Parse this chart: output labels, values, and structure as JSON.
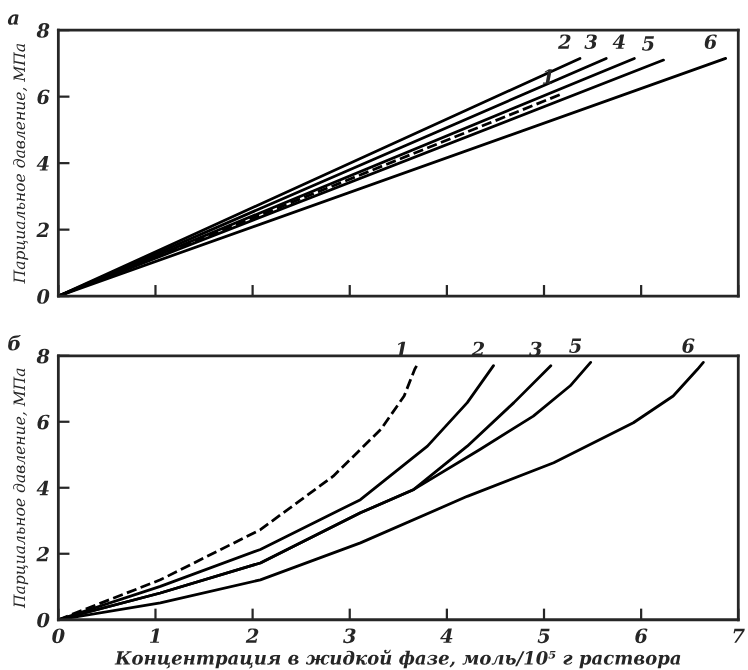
{
  "chart_data": [
    {
      "type": "line",
      "title": "а",
      "ylabel": "Парциальное давление, МПа",
      "xlim": [
        0,
        7
      ],
      "xticks": [
        0,
        1,
        2,
        3,
        4,
        5,
        6,
        7
      ],
      "ylim": [
        0,
        8
      ],
      "yticks": [
        0,
        2,
        4,
        6,
        8
      ],
      "tick_labels": "y",
      "series": [
        {
          "name": "1",
          "color": "#000000",
          "line_style": "dashed",
          "x": [
            0,
            5.2
          ],
          "values": [
            0,
            6.1
          ]
        },
        {
          "name": "2",
          "color": "#000000",
          "line_style": "solid",
          "x": [
            0,
            5.37
          ],
          "values": [
            0,
            7.15
          ]
        },
        {
          "name": "3",
          "color": "#000000",
          "line_style": "solid",
          "x": [
            0,
            5.64
          ],
          "values": [
            0,
            7.15
          ]
        },
        {
          "name": "4",
          "color": "#000000",
          "line_style": "solid",
          "x": [
            0,
            5.93
          ],
          "values": [
            0,
            7.15
          ]
        },
        {
          "name": "5",
          "color": "#000000",
          "line_style": "solid",
          "x": [
            0,
            6.23
          ],
          "values": [
            0,
            7.1
          ]
        },
        {
          "name": "6",
          "color": "#000000",
          "line_style": "solid",
          "x": [
            0,
            6.87
          ],
          "values": [
            0,
            7.15
          ]
        }
      ]
    },
    {
      "type": "line",
      "title": "б",
      "xlabel": "Концентрация в жидкой фазе, моль/10⁵ г раствора",
      "ylabel": "Парциальное давление, МПа",
      "xlim": [
        0,
        7
      ],
      "xticks": [
        0,
        1,
        2,
        3,
        4,
        5,
        6,
        7
      ],
      "ylim": [
        0,
        8
      ],
      "yticks": [
        0,
        2,
        4,
        6,
        8
      ],
      "series": [
        {
          "name": "1",
          "color": "#000000",
          "line_style": "dashed",
          "x": [
            0,
            1.05,
            2.08,
            2.83,
            3.32,
            3.56,
            3.67,
            3.69
          ],
          "values": [
            0,
            1.21,
            2.73,
            4.35,
            5.77,
            6.78,
            7.6,
            7.7
          ]
        },
        {
          "name": "2",
          "color": "#000000",
          "line_style": "solid",
          "x": [
            0,
            1.05,
            2.08,
            3.11,
            3.8,
            4.21,
            4.48
          ],
          "values": [
            0,
            1.01,
            2.13,
            3.64,
            5.26,
            6.58,
            7.7
          ]
        },
        {
          "name": "3",
          "color": "#000000",
          "line_style": "solid",
          "x": [
            0,
            1.05,
            2.08,
            3.11,
            3.66,
            4.21,
            4.69,
            5.07
          ],
          "values": [
            0,
            0.81,
            1.72,
            3.24,
            3.95,
            5.26,
            6.58,
            7.7
          ]
        },
        {
          "name": "5",
          "color": "#000000",
          "line_style": "solid",
          "x": [
            0,
            1.05,
            2.08,
            3.11,
            3.66,
            4.34,
            4.89,
            5.27,
            5.48
          ],
          "values": [
            0,
            0.81,
            1.72,
            3.24,
            3.95,
            5.16,
            6.17,
            7.09,
            7.8
          ]
        },
        {
          "name": "6",
          "color": "#000000",
          "line_style": "solid",
          "x": [
            0,
            1.05,
            2.08,
            3.11,
            4.21,
            5.1,
            5.92,
            6.33,
            6.58,
            6.64
          ],
          "values": [
            0,
            0.51,
            1.21,
            2.33,
            3.74,
            4.76,
            5.97,
            6.78,
            7.59,
            7.8
          ]
        }
      ]
    }
  ]
}
